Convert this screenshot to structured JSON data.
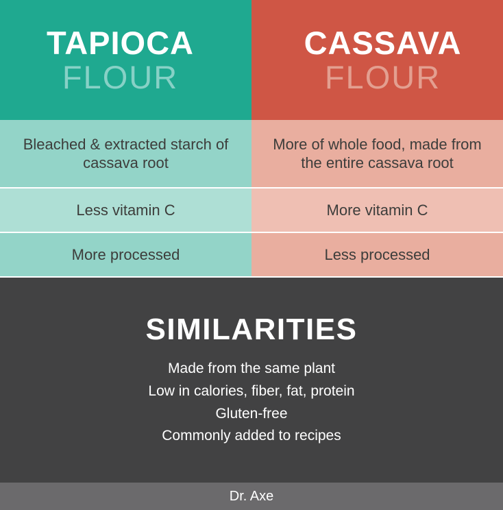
{
  "colors": {
    "teal_header": "#1fa990",
    "teal_row1": "#93d4c8",
    "teal_row2": "#aedfd5",
    "teal_subtext": "#87d1c6",
    "red_header": "#cf5645",
    "red_row1": "#e9ae9f",
    "red_row2": "#efbfb3",
    "red_subtext": "#e39f90",
    "dark_gray": "#424243",
    "footer_gray": "#6b6a6c"
  },
  "left": {
    "title_bold": "TAPIOCA",
    "title_thin": "FLOUR",
    "rows": [
      "Bleached & extracted starch of cassava root",
      "Less vitamin C",
      "More processed"
    ]
  },
  "right": {
    "title_bold": "CASSAVA",
    "title_thin": "FLOUR",
    "rows": [
      "More of whole food, made from the entire cassava root",
      "More vitamin  C",
      "Less processed"
    ]
  },
  "similarities": {
    "title": "SIMILARITIES",
    "lines": [
      "Made from the same plant",
      "Low in calories, fiber, fat, protein",
      "Gluten-free",
      "Commonly added to recipes"
    ]
  },
  "footer": "Dr. Axe"
}
